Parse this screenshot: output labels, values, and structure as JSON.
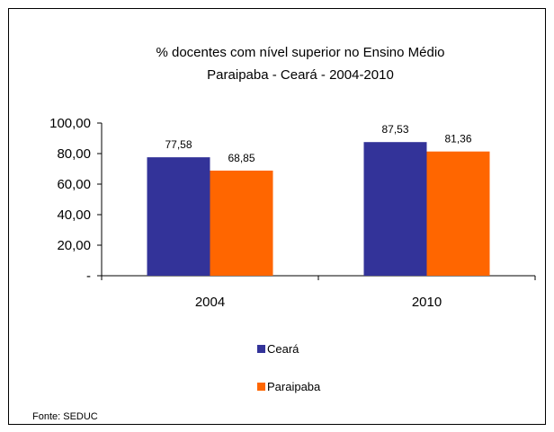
{
  "chart_data": {
    "type": "bar",
    "title_line1": "% docentes com nível  superior no Ensino Médio",
    "title_line2": "Paraipaba  -  Ceará - 2004-2010",
    "categories": [
      "2004",
      "2010"
    ],
    "series": [
      {
        "name": "Ceará",
        "color": "#333399",
        "values": [
          77.58,
          87.53
        ],
        "labels": [
          "77,58",
          "87,53"
        ]
      },
      {
        "name": "Paraipaba",
        "color": "#FF6600",
        "values": [
          68.85,
          81.36
        ],
        "labels": [
          "68,85",
          "81,36"
        ]
      }
    ],
    "ylim": [
      0,
      100
    ],
    "yticks": [
      {
        "value": 0,
        "label": "-"
      },
      {
        "value": 20,
        "label": "20,00"
      },
      {
        "value": 40,
        "label": "40,00"
      },
      {
        "value": 60,
        "label": "60,00"
      },
      {
        "value": 80,
        "label": "80,00"
      },
      {
        "value": 100,
        "label": "100,00"
      }
    ],
    "grid": false,
    "legend": "bottom-center",
    "source": "Fonte: SEDUC"
  }
}
